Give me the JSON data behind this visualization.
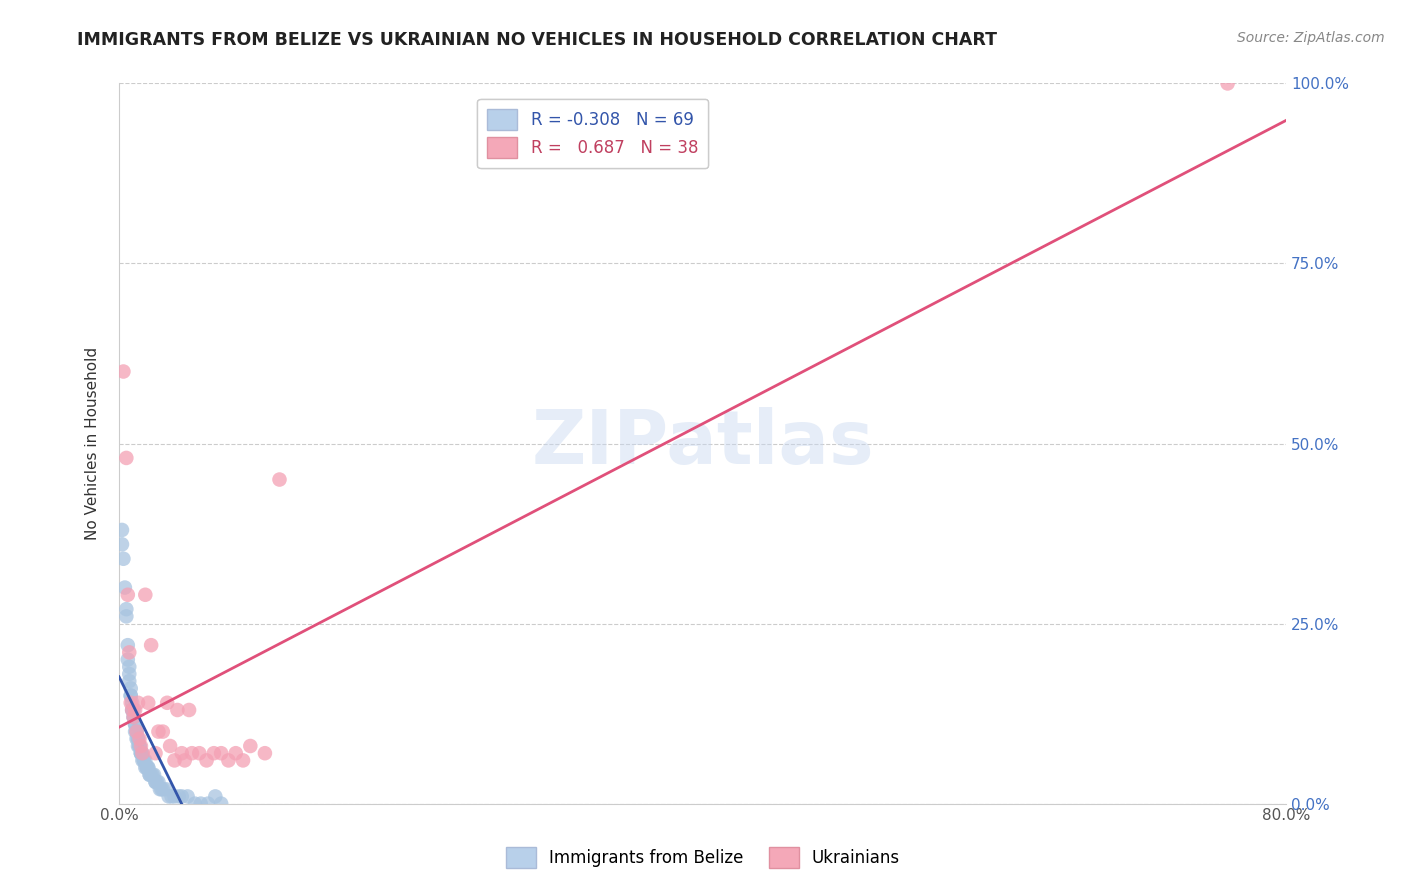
{
  "title": "IMMIGRANTS FROM BELIZE VS UKRAINIAN NO VEHICLES IN HOUSEHOLD CORRELATION CHART",
  "source": "Source: ZipAtlas.com",
  "ylabel": "No Vehicles in Household",
  "xlim": [
    0,
    0.8
  ],
  "ylim": [
    0,
    1.0
  ],
  "x_ticks": [
    0.0,
    0.1,
    0.2,
    0.3,
    0.4,
    0.5,
    0.6,
    0.7,
    0.8
  ],
  "x_tick_labels": [
    "0.0%",
    "",
    "",
    "",
    "",
    "",
    "",
    "",
    "80.0%"
  ],
  "y_ticks": [
    0.0,
    0.25,
    0.5,
    0.75,
    1.0
  ],
  "y_tick_labels": [
    "0.0%",
    "25.0%",
    "50.0%",
    "75.0%",
    "100.0%"
  ],
  "belize_R": -0.308,
  "belize_N": 69,
  "ukraine_R": 0.687,
  "ukraine_N": 38,
  "belize_color": "#a8c4e0",
  "ukraine_color": "#f4a0b4",
  "belize_line_color": "#3355aa",
  "ukraine_line_color": "#e0507a",
  "belize_x": [
    0.002,
    0.003,
    0.004,
    0.005,
    0.005,
    0.006,
    0.006,
    0.007,
    0.007,
    0.007,
    0.008,
    0.008,
    0.008,
    0.009,
    0.009,
    0.009,
    0.01,
    0.01,
    0.01,
    0.011,
    0.011,
    0.011,
    0.012,
    0.012,
    0.012,
    0.013,
    0.013,
    0.013,
    0.014,
    0.014,
    0.014,
    0.015,
    0.015,
    0.015,
    0.016,
    0.016,
    0.017,
    0.017,
    0.018,
    0.018,
    0.019,
    0.019,
    0.02,
    0.02,
    0.021,
    0.021,
    0.022,
    0.023,
    0.024,
    0.025,
    0.025,
    0.026,
    0.027,
    0.028,
    0.029,
    0.03,
    0.032,
    0.034,
    0.036,
    0.038,
    0.041,
    0.043,
    0.047,
    0.052,
    0.056,
    0.061,
    0.066,
    0.07,
    0.002
  ],
  "belize_y": [
    0.38,
    0.34,
    0.3,
    0.27,
    0.26,
    0.22,
    0.2,
    0.19,
    0.18,
    0.17,
    0.16,
    0.15,
    0.15,
    0.14,
    0.13,
    0.13,
    0.13,
    0.12,
    0.12,
    0.11,
    0.11,
    0.1,
    0.1,
    0.1,
    0.09,
    0.09,
    0.09,
    0.08,
    0.08,
    0.08,
    0.08,
    0.07,
    0.07,
    0.07,
    0.07,
    0.06,
    0.06,
    0.06,
    0.06,
    0.05,
    0.05,
    0.05,
    0.05,
    0.05,
    0.04,
    0.04,
    0.04,
    0.04,
    0.04,
    0.03,
    0.03,
    0.03,
    0.03,
    0.02,
    0.02,
    0.02,
    0.02,
    0.01,
    0.01,
    0.01,
    0.01,
    0.01,
    0.01,
    0.0,
    0.0,
    0.0,
    0.01,
    0.0,
    0.36
  ],
  "ukraine_x": [
    0.003,
    0.005,
    0.006,
    0.007,
    0.008,
    0.009,
    0.01,
    0.011,
    0.012,
    0.013,
    0.014,
    0.015,
    0.016,
    0.018,
    0.02,
    0.022,
    0.025,
    0.027,
    0.03,
    0.033,
    0.035,
    0.038,
    0.04,
    0.043,
    0.045,
    0.048,
    0.05,
    0.055,
    0.06,
    0.065,
    0.07,
    0.075,
    0.08,
    0.085,
    0.09,
    0.1,
    0.11,
    0.76
  ],
  "ukraine_y": [
    0.6,
    0.48,
    0.29,
    0.21,
    0.14,
    0.13,
    0.12,
    0.13,
    0.1,
    0.14,
    0.09,
    0.08,
    0.07,
    0.29,
    0.14,
    0.22,
    0.07,
    0.1,
    0.1,
    0.14,
    0.08,
    0.06,
    0.13,
    0.07,
    0.06,
    0.13,
    0.07,
    0.07,
    0.06,
    0.07,
    0.07,
    0.06,
    0.07,
    0.06,
    0.08,
    0.07,
    0.45,
    1.0
  ]
}
